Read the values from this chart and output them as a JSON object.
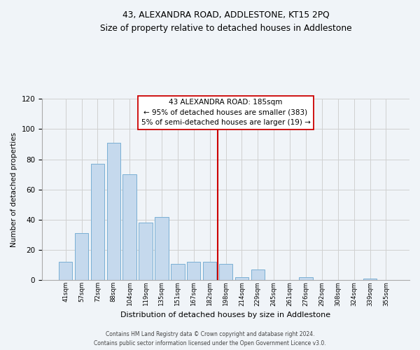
{
  "title": "43, ALEXANDRA ROAD, ADDLESTONE, KT15 2PQ",
  "subtitle": "Size of property relative to detached houses in Addlestone",
  "xlabel": "Distribution of detached houses by size in Addlestone",
  "ylabel": "Number of detached properties",
  "bar_labels": [
    "41sqm",
    "57sqm",
    "72sqm",
    "88sqm",
    "104sqm",
    "119sqm",
    "135sqm",
    "151sqm",
    "167sqm",
    "182sqm",
    "198sqm",
    "214sqm",
    "229sqm",
    "245sqm",
    "261sqm",
    "276sqm",
    "292sqm",
    "308sqm",
    "324sqm",
    "339sqm",
    "355sqm"
  ],
  "bar_heights": [
    12,
    31,
    77,
    91,
    70,
    38,
    42,
    11,
    12,
    12,
    11,
    2,
    7,
    0,
    0,
    2,
    0,
    0,
    0,
    1,
    0
  ],
  "bar_color": "#c5d9ed",
  "bar_edge_color": "#7aafd4",
  "vline_x_index": 9.5,
  "vline_color": "#cc0000",
  "annotation_line1": "43 ALEXANDRA ROAD: 185sqm",
  "annotation_line2": "← 95% of detached houses are smaller (383)",
  "annotation_line3": "5% of semi-detached houses are larger (19) →",
  "ylim": [
    0,
    120
  ],
  "yticks": [
    0,
    20,
    40,
    60,
    80,
    100,
    120
  ],
  "grid_color": "#d0d0d0",
  "footer_line1": "Contains HM Land Registry data © Crown copyright and database right 2024.",
  "footer_line2": "Contains public sector information licensed under the Open Government Licence v3.0.",
  "bg_color": "#f0f4f8"
}
